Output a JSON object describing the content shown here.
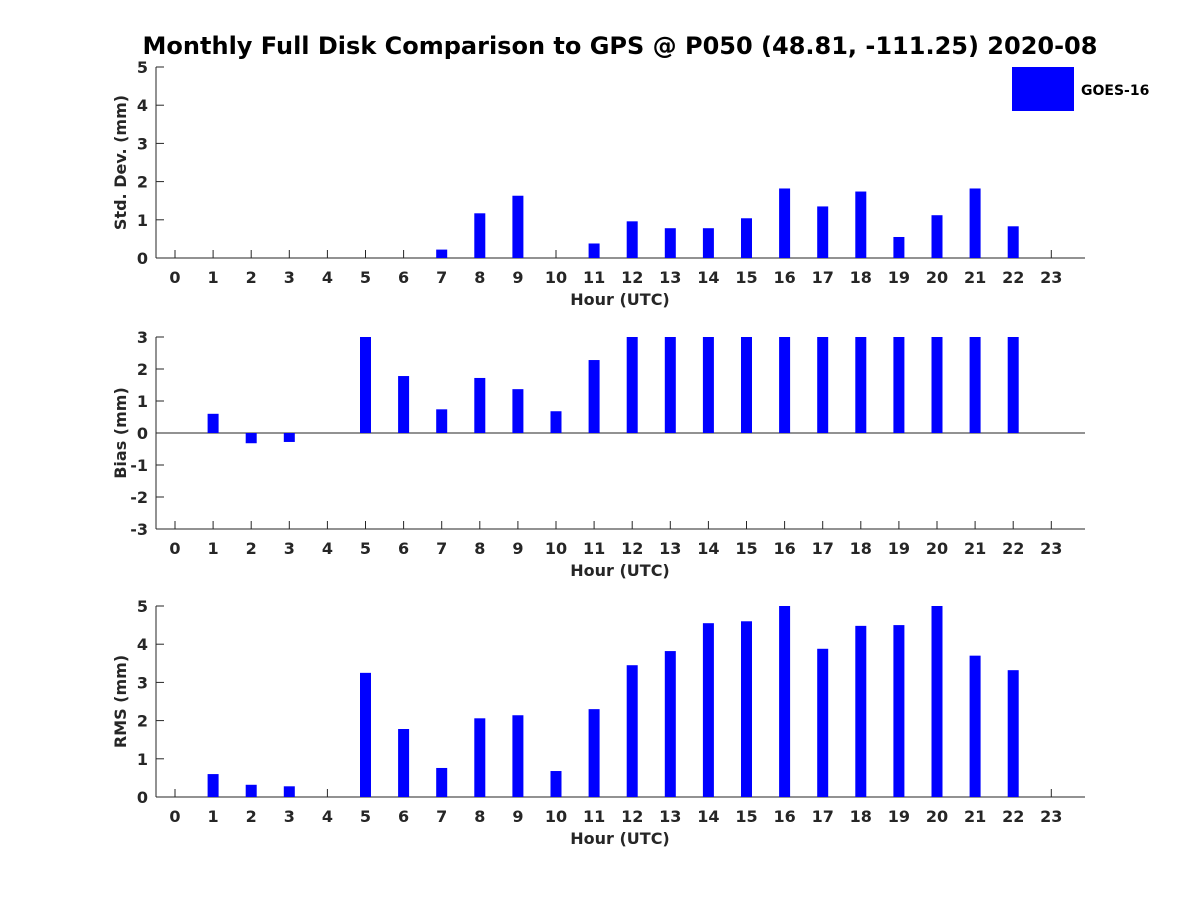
{
  "title": "Monthly Full Disk Comparison to GPS @ P050 (48.81, -111.25) 2020-08",
  "legend": {
    "label": "GOES-16",
    "color": "#0000ff",
    "placement": "top-right"
  },
  "chart_data": [
    {
      "type": "bar",
      "ylabel": "Std. Dev. (mm)",
      "xlabel": "Hour (UTC)",
      "categories": [
        0,
        1,
        2,
        3,
        4,
        5,
        6,
        7,
        8,
        9,
        10,
        11,
        12,
        13,
        14,
        15,
        16,
        17,
        18,
        19,
        20,
        21,
        22,
        23
      ],
      "ylim": [
        0,
        5
      ],
      "yticks": [
        0,
        1,
        2,
        3,
        4,
        5
      ],
      "series": [
        {
          "name": "GOES-16",
          "values": [
            null,
            null,
            null,
            null,
            null,
            null,
            null,
            0.22,
            1.17,
            1.63,
            null,
            0.38,
            0.96,
            0.78,
            0.78,
            1.04,
            1.82,
            1.35,
            1.74,
            0.55,
            1.12,
            1.82,
            0.83,
            null
          ]
        }
      ]
    },
    {
      "type": "bar",
      "ylabel": "Bias (mm)",
      "xlabel": "Hour (UTC)",
      "categories": [
        0,
        1,
        2,
        3,
        4,
        5,
        6,
        7,
        8,
        9,
        10,
        11,
        12,
        13,
        14,
        15,
        16,
        17,
        18,
        19,
        20,
        21,
        22,
        23
      ],
      "ylim": [
        -3,
        3
      ],
      "yticks": [
        -3,
        -2,
        -1,
        0,
        1,
        2,
        3
      ],
      "zero_line": true,
      "series": [
        {
          "name": "GOES-16",
          "values": [
            null,
            0.6,
            -0.32,
            -0.28,
            null,
            3.0,
            1.78,
            0.74,
            1.72,
            1.37,
            0.68,
            2.28,
            3.0,
            3.0,
            3.0,
            3.0,
            3.0,
            3.0,
            3.0,
            3.0,
            3.0,
            3.0,
            3.0,
            null
          ]
        }
      ]
    },
    {
      "type": "bar",
      "ylabel": "RMS (mm)",
      "xlabel": "Hour (UTC)",
      "categories": [
        0,
        1,
        2,
        3,
        4,
        5,
        6,
        7,
        8,
        9,
        10,
        11,
        12,
        13,
        14,
        15,
        16,
        17,
        18,
        19,
        20,
        21,
        22,
        23
      ],
      "ylim": [
        0,
        5
      ],
      "yticks": [
        0,
        1,
        2,
        3,
        4,
        5
      ],
      "series": [
        {
          "name": "GOES-16",
          "values": [
            null,
            0.6,
            0.32,
            0.28,
            null,
            3.25,
            1.78,
            0.76,
            2.06,
            2.14,
            0.68,
            2.3,
            3.45,
            3.82,
            4.55,
            4.6,
            5.0,
            3.88,
            4.48,
            4.5,
            5.0,
            3.7,
            3.32,
            null
          ]
        }
      ]
    }
  ]
}
